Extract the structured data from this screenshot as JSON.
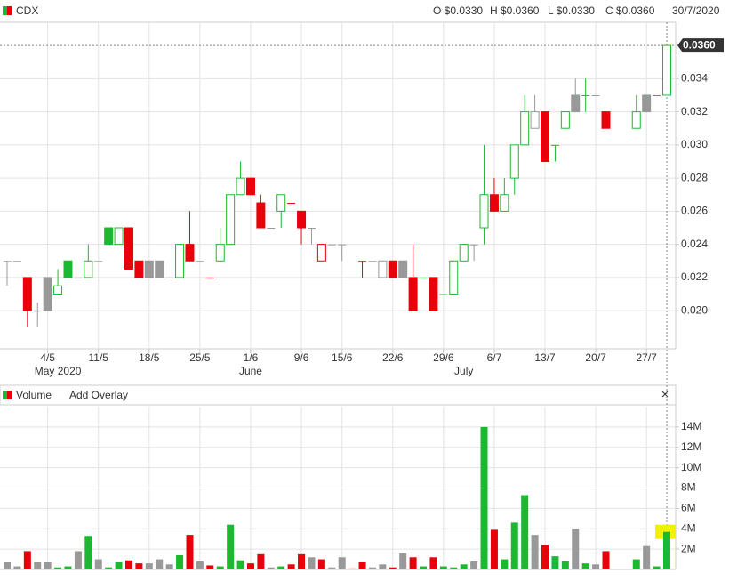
{
  "header": {
    "symbol": "CDX",
    "open": "O $0.0330",
    "high": "H $0.0360",
    "low": "L $0.0330",
    "close": "C $0.0360",
    "date": "30/7/2020"
  },
  "volume_panel": {
    "title": "Volume",
    "overlay": "Add Overlay",
    "close": "×"
  },
  "chart_data": [
    {
      "type": "candlestick",
      "categories": [
        null,
        null,
        null,
        null,
        "4/5",
        null,
        null,
        null,
        null,
        "11/5",
        null,
        null,
        null,
        null,
        "18/5",
        null,
        null,
        null,
        null,
        "25/5",
        null,
        null,
        null,
        null,
        "1/6",
        null,
        null,
        null,
        null,
        "9/6",
        null,
        null,
        null,
        "15/6",
        null,
        null,
        null,
        null,
        "22/6",
        null,
        null,
        null,
        null,
        "29/6",
        null,
        null,
        null,
        null,
        "6/7",
        null,
        null,
        null,
        null,
        "13/7",
        null,
        null,
        null,
        null,
        "20/7",
        null,
        null,
        null,
        null,
        "27/7",
        null,
        null
      ],
      "months": [
        null,
        null,
        null,
        null,
        null,
        "May 2020",
        null,
        null,
        null,
        null,
        null,
        null,
        null,
        null,
        null,
        null,
        null,
        null,
        null,
        null,
        null,
        null,
        null,
        null,
        "June",
        null,
        null,
        null,
        null,
        null,
        null,
        null,
        null,
        null,
        null,
        null,
        null,
        null,
        null,
        null,
        null,
        null,
        null,
        null,
        null,
        "July",
        null,
        null,
        null,
        null,
        null,
        null,
        null,
        null,
        null,
        null,
        null,
        null,
        null,
        null,
        null,
        null,
        null,
        null,
        null,
        null
      ],
      "open": [
        0.023,
        0.023,
        0.022,
        0.02,
        0.022,
        0.021,
        0.023,
        0.022,
        0.022,
        0.023,
        0.025,
        0.024,
        0.025,
        0.023,
        0.023,
        0.023,
        0.022,
        0.022,
        0.024,
        0.023,
        0.022,
        0.023,
        0.024,
        0.027,
        0.028,
        0.0265,
        0.025,
        0.026,
        0.0265,
        0.026,
        0.025,
        0.023,
        0.024,
        0.024,
        null,
        0.023,
        0.023,
        0.022,
        0.023,
        0.023,
        0.022,
        0.022,
        0.022,
        0.021,
        0.021,
        0.023,
        0.024,
        0.025,
        0.027,
        0.026,
        0.028,
        0.03,
        0.031,
        0.032,
        0.03,
        0.031,
        0.033,
        0.033,
        0.033,
        0.032,
        null,
        null,
        0.031,
        0.033,
        0.033,
        0.033
      ],
      "high": [
        0.023,
        0.023,
        0.022,
        0.0205,
        0.022,
        0.0225,
        0.023,
        0.022,
        0.024,
        0.023,
        0.025,
        0.025,
        0.025,
        0.023,
        0.023,
        0.023,
        0.022,
        0.024,
        0.026,
        0.023,
        0.022,
        0.025,
        0.027,
        0.029,
        0.028,
        0.027,
        0.025,
        0.027,
        0.0265,
        0.026,
        0.025,
        0.024,
        0.024,
        0.024,
        null,
        0.023,
        0.023,
        0.023,
        0.023,
        0.023,
        0.024,
        0.022,
        0.022,
        0.021,
        0.023,
        0.024,
        0.024,
        0.03,
        0.028,
        0.028,
        0.03,
        0.033,
        0.033,
        0.032,
        0.03,
        0.032,
        0.034,
        0.034,
        0.033,
        0.032,
        null,
        null,
        0.033,
        0.033,
        0.033,
        0.036
      ],
      "low": [
        0.0215,
        0.023,
        0.019,
        0.019,
        0.02,
        0.021,
        0.022,
        0.022,
        0.022,
        0.023,
        0.024,
        0.024,
        0.0225,
        0.022,
        0.022,
        0.022,
        0.022,
        0.022,
        0.023,
        0.023,
        0.022,
        0.023,
        0.024,
        0.027,
        0.027,
        0.025,
        0.025,
        0.025,
        0.0265,
        0.024,
        0.024,
        0.023,
        0.024,
        0.023,
        null,
        0.022,
        0.023,
        0.022,
        0.022,
        0.022,
        0.02,
        0.022,
        0.02,
        0.021,
        0.021,
        0.023,
        0.023,
        0.024,
        0.026,
        0.026,
        0.027,
        0.03,
        0.031,
        0.029,
        0.029,
        0.031,
        0.032,
        0.032,
        0.033,
        0.031,
        null,
        null,
        0.031,
        0.032,
        0.033,
        0.033
      ],
      "close": [
        0.023,
        0.023,
        0.02,
        0.02,
        0.02,
        0.0215,
        0.022,
        0.022,
        0.023,
        0.023,
        0.024,
        0.025,
        0.0225,
        0.022,
        0.022,
        0.022,
        0.022,
        0.024,
        0.023,
        0.023,
        0.022,
        0.024,
        0.027,
        0.028,
        0.027,
        0.025,
        0.025,
        0.027,
        0.0265,
        0.025,
        0.025,
        0.024,
        0.024,
        0.024,
        null,
        0.023,
        0.023,
        0.023,
        0.022,
        0.022,
        0.02,
        0.022,
        0.02,
        0.021,
        0.023,
        0.024,
        0.024,
        0.027,
        0.026,
        0.027,
        0.03,
        0.032,
        0.032,
        0.029,
        0.03,
        0.032,
        0.032,
        0.033,
        0.033,
        0.031,
        null,
        null,
        0.032,
        0.032,
        0.033,
        0.036
      ],
      "up_color": "#1db832",
      "down_color": "#e8000b",
      "flat_color": "#999999",
      "ylim": [
        0.0177,
        0.0374
      ],
      "yticks": [
        {
          "value": 0.02,
          "label": "0.020"
        },
        {
          "value": 0.022,
          "label": "0.022"
        },
        {
          "value": 0.024,
          "label": "0.024"
        },
        {
          "value": 0.026,
          "label": "0.026"
        },
        {
          "value": 0.028,
          "label": "0.028"
        },
        {
          "value": 0.03,
          "label": "0.030"
        },
        {
          "value": 0.032,
          "label": "0.032"
        },
        {
          "value": 0.034,
          "label": "0.034"
        }
      ],
      "last_price": {
        "value": 0.036,
        "label": "0.0360"
      },
      "grid": true
    },
    {
      "type": "bar",
      "values": [
        700000,
        300000,
        1800000,
        700000,
        700000,
        200000,
        300000,
        1800000,
        3300000,
        1000000,
        200000,
        700000,
        900000,
        600000,
        600000,
        1000000,
        500000,
        1400000,
        3400000,
        800000,
        400000,
        300000,
        4400000,
        900000,
        600000,
        1500000,
        200000,
        300000,
        500000,
        1500000,
        1200000,
        1000000,
        200000,
        1200000,
        100000,
        700000,
        200000,
        500000,
        200000,
        1600000,
        1200000,
        300000,
        1200000,
        300000,
        200000,
        500000,
        800000,
        14000000,
        3900000,
        1000000,
        4600000,
        7300000,
        3400000,
        2400000,
        1300000,
        800000,
        4000000,
        600000,
        500000,
        1800000,
        null,
        null,
        1000000,
        2300000,
        300000,
        3700000
      ],
      "ylim": [
        0,
        16000000
      ],
      "yticks": [
        {
          "value": 2000000,
          "label": "2M"
        },
        {
          "value": 4000000,
          "label": "4M"
        },
        {
          "value": 6000000,
          "label": "6M"
        },
        {
          "value": 8000000,
          "label": "8M"
        },
        {
          "value": 10000000,
          "label": "10M"
        },
        {
          "value": 12000000,
          "label": "12M"
        },
        {
          "value": 14000000,
          "label": "14M"
        }
      ],
      "highlight_color": "#f2f200",
      "grid": true
    }
  ]
}
